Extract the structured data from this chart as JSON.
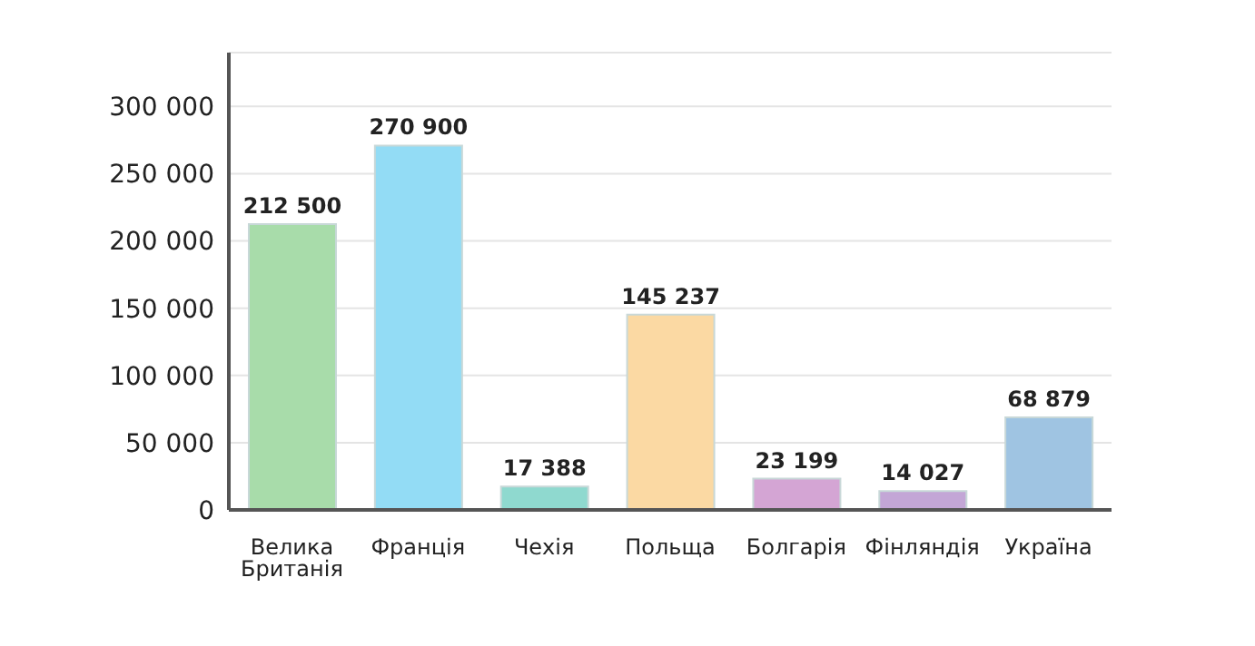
{
  "chart_data": {
    "type": "bar",
    "categories": [
      "Велика Британія",
      "Франція",
      "Чехія",
      "Польща",
      "Болгарія",
      "Фінляндія",
      "Україна"
    ],
    "values": [
      212500,
      270900,
      17388,
      145237,
      23199,
      14027,
      68879
    ],
    "colors": [
      "#a8dcaa",
      "#93dcf5",
      "#8fd9cf",
      "#fbd9a3",
      "#d4a5d4",
      "#c3a6d6",
      "#9fc4e2"
    ],
    "value_labels": [
      "212 500",
      "270 900",
      "17 388",
      "145 237",
      "23 199",
      "14 027",
      "68 879"
    ],
    "ylim": [
      0,
      340000
    ],
    "yticks": [
      {
        "value": 0,
        "label": "0"
      },
      {
        "value": 50000,
        "label": "50 000"
      },
      {
        "value": 100000,
        "label": "100 000"
      },
      {
        "value": 150000,
        "label": "150 000"
      },
      {
        "value": 200000,
        "label": "200 000"
      },
      {
        "value": 250000,
        "label": "250 000"
      },
      {
        "value": 300000,
        "label": "300 000"
      }
    ],
    "grid": "y"
  }
}
